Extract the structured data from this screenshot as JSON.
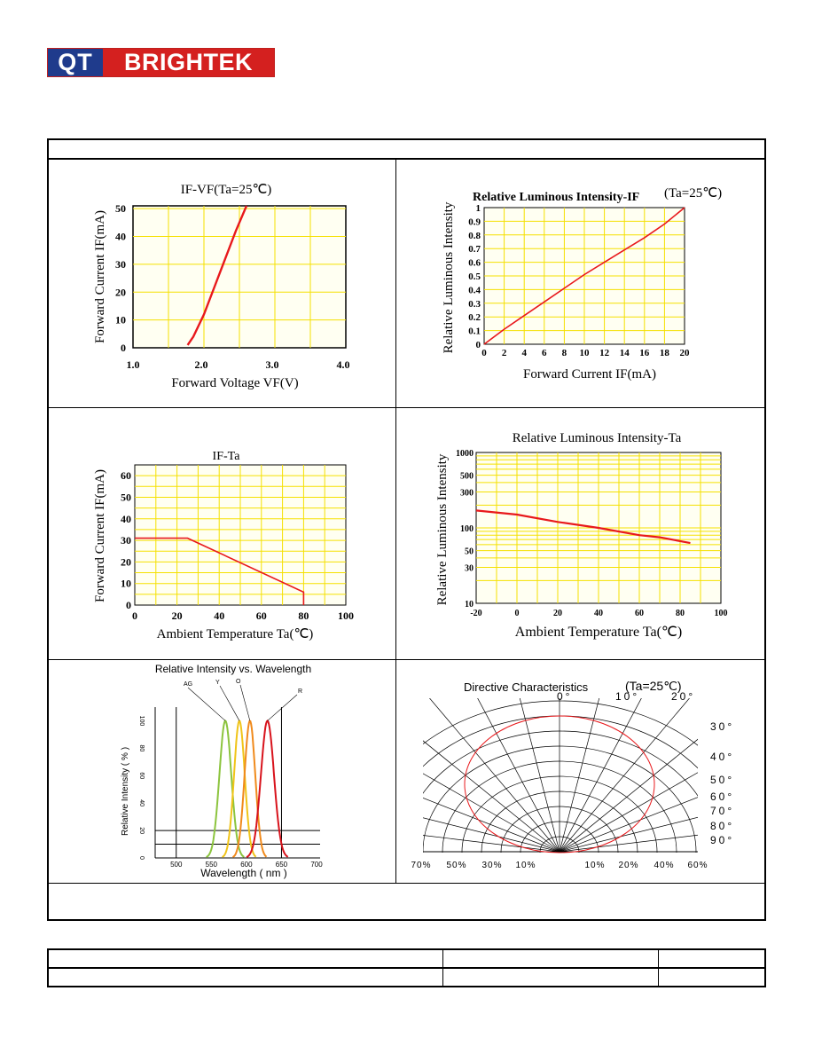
{
  "logo": {
    "left": "QT",
    "right": "BRIGHTEK"
  },
  "colors": {
    "curve": "#e8191c",
    "grid": "#f5e000",
    "plot_bg": "#fffff2"
  },
  "charts": {
    "ifvf": {
      "title": "IF-VF(Ta=25℃)",
      "xlabel": "Forward Voltage VF(V)",
      "ylabel": "Forward Current IF(mA)",
      "xticks": [
        "1.0",
        "2.0",
        "3.0",
        "4.0"
      ],
      "yticks": [
        "0",
        "10",
        "20",
        "30",
        "40",
        "50"
      ]
    },
    "rlif": {
      "title": "Relative Luminous Intensity-IF",
      "cond": "(Ta=25℃)",
      "xlabel": "Forward Current IF(mA)",
      "ylabel": "Relative Luminous Intensity",
      "xticks": [
        "0",
        "2",
        "4",
        "6",
        "8",
        "10",
        "12",
        "14",
        "16",
        "18",
        "20"
      ],
      "yticks": [
        "0",
        "0.1",
        "0.2",
        "0.3",
        "0.4",
        "0.5",
        "0.6",
        "0.7",
        "0.8",
        "0.9",
        "1"
      ]
    },
    "ifta": {
      "title": "IF-Ta",
      "xlabel": "Ambient Temperature Ta(℃)",
      "ylabel": "Forward Current IF(mA)",
      "xticks": [
        "0",
        "20",
        "40",
        "60",
        "80",
        "100"
      ],
      "yticks": [
        "0",
        "10",
        "20",
        "30",
        "40",
        "50",
        "60"
      ]
    },
    "rlta": {
      "title": "Relative Luminous Intensity-Ta",
      "xlabel": "Ambient Temperature Ta(℃)",
      "ylabel": "Relative Luminous Intensity",
      "xticks": [
        "-20",
        "0",
        "20",
        "40",
        "60",
        "80",
        "100"
      ],
      "yticks": [
        "10",
        "30",
        "50",
        "100",
        "300",
        "500",
        "1000"
      ]
    },
    "spec": {
      "title": "Relative Intensity vs. Wavelength",
      "xlabel": "Wavelength ( nm )",
      "ylabel": "Relative Intensity ( % )",
      "xticks": [
        "500",
        "550",
        "600",
        "650",
        "700"
      ],
      "yticks": [
        "0",
        "20",
        "40",
        "60",
        "80",
        "100"
      ],
      "series_labels": [
        "AG",
        "Y",
        "O",
        "R"
      ]
    },
    "dir": {
      "title": "Directive Characteristics",
      "cond": "(Ta=25℃)",
      "angle_labels_top": [
        "0°",
        "10°",
        "20°"
      ],
      "angle_labels_right": [
        "30°",
        "40°",
        "50°",
        "60°",
        "70°",
        "80°",
        "90°"
      ],
      "bottom_labels": [
        "70%",
        "50%",
        "30%",
        "10%",
        "10%",
        "20%",
        "40%",
        "60%"
      ]
    }
  },
  "chart_data": [
    {
      "type": "line",
      "title": "IF-VF(Ta=25℃)",
      "xlabel": "Forward Voltage VF(V)",
      "ylabel": "Forward Current IF(mA)",
      "xlim": [
        1.0,
        4.0
      ],
      "ylim": [
        0,
        50
      ],
      "grid": true,
      "x": [
        1.77,
        1.85,
        2.0,
        2.15,
        2.3,
        2.45,
        2.6
      ],
      "y": [
        1,
        4,
        12,
        22,
        32,
        42,
        51
      ]
    },
    {
      "type": "line",
      "title": "Relative Luminous Intensity-IF",
      "xlabel": "Forward Current IF(mA)",
      "ylabel": "Relative Luminous Intensity",
      "xlim": [
        0,
        20
      ],
      "ylim": [
        0,
        1
      ],
      "grid": true,
      "x": [
        0,
        2,
        4,
        6,
        8,
        10,
        12,
        14,
        16,
        18,
        20
      ],
      "y": [
        0,
        0.11,
        0.21,
        0.31,
        0.41,
        0.51,
        0.6,
        0.69,
        0.78,
        0.88,
        1.0
      ]
    },
    {
      "type": "line",
      "title": "IF-Ta",
      "xlabel": "Ambient Temperature Ta(℃)",
      "ylabel": "Forward Current IF(mA)",
      "xlim": [
        0,
        100
      ],
      "ylim": [
        0,
        65
      ],
      "grid": true,
      "x": [
        0,
        25,
        80,
        80
      ],
      "y": [
        31,
        31,
        6,
        0
      ]
    },
    {
      "type": "line",
      "title": "Relative Luminous Intensity-Ta",
      "xlabel": "Ambient Temperature Ta(℃)",
      "ylabel": "Relative Luminous Intensity",
      "xlim": [
        -20,
        100
      ],
      "ylim": [
        10,
        1000
      ],
      "yscale": "log",
      "grid": true,
      "x": [
        -20,
        0,
        20,
        40,
        60,
        70,
        85
      ],
      "y": [
        170,
        150,
        120,
        100,
        80,
        75,
        63
      ]
    },
    {
      "type": "line",
      "title": "Relative Intensity vs. Wavelength",
      "xlabel": "Wavelength ( nm )",
      "ylabel": "Relative Intensity ( % )",
      "xlim": [
        475,
        705
      ],
      "ylim": [
        0,
        100
      ],
      "grid": true,
      "series": [
        {
          "name": "AG",
          "peak": 570,
          "fwhm": 20
        },
        {
          "name": "Y",
          "peak": 590,
          "fwhm": 18
        },
        {
          "name": "O",
          "peak": 605,
          "fwhm": 18
        },
        {
          "name": "R",
          "peak": 630,
          "fwhm": 22
        }
      ]
    },
    {
      "type": "scatter",
      "title": "Directive Characteristics",
      "note": "Polar radiation pattern, viewing angle vs relative intensity",
      "angles_deg": [
        0,
        10,
        20,
        30,
        40,
        50,
        60,
        70,
        80,
        90
      ]
    }
  ]
}
